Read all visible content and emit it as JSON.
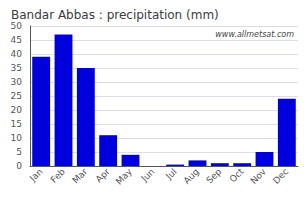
{
  "chart_data": {
    "type": "bar",
    "title": "Bandar Abbas : precipitation (mm)",
    "categories": [
      "Jan",
      "Feb",
      "Mar",
      "Apr",
      "May",
      "Jun",
      "Jul",
      "Aug",
      "Sep",
      "Oct",
      "Nov",
      "Dec"
    ],
    "values": [
      39,
      47,
      35,
      11,
      4,
      0,
      0.5,
      2,
      1,
      1,
      5,
      24
    ],
    "color": "#0000dd",
    "ylim": [
      0,
      50
    ],
    "yticks": [
      0,
      5,
      10,
      15,
      20,
      25,
      30,
      35,
      40,
      45,
      50
    ],
    "grid": true,
    "annotations": [
      "www.allmetsat.com"
    ]
  }
}
